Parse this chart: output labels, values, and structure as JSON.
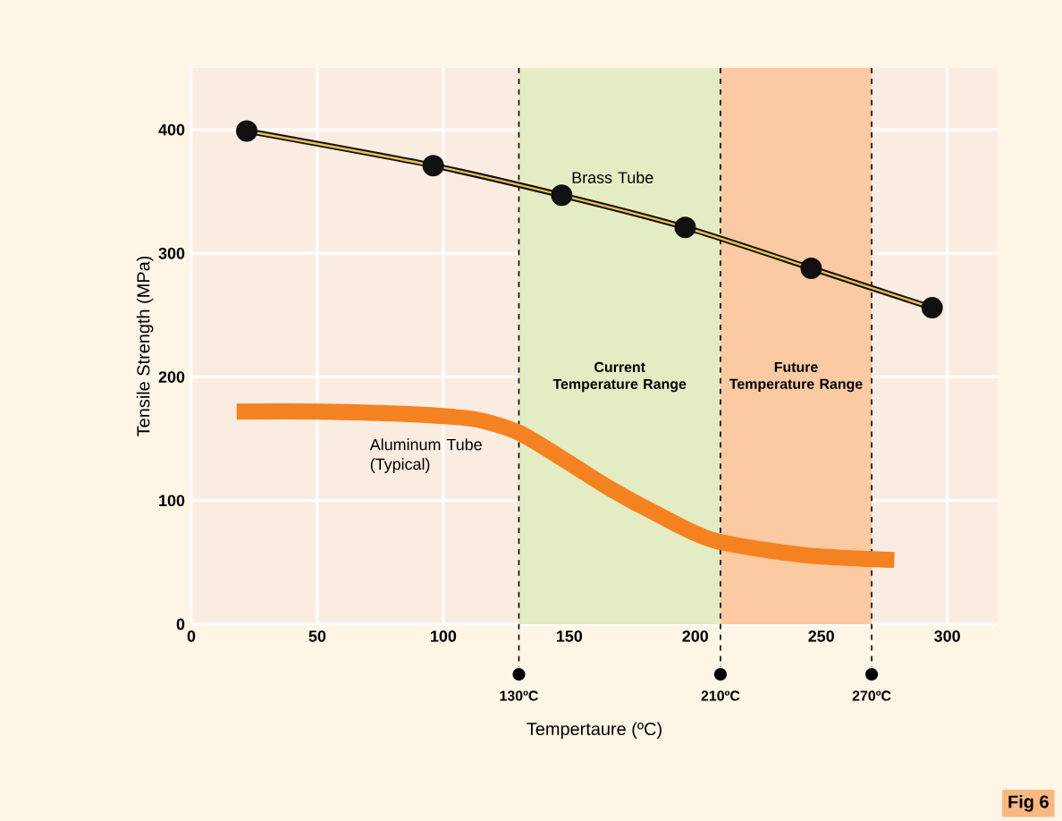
{
  "chart_data": {
    "type": "line",
    "xlabel": "Tempertaure (ºC)",
    "ylabel": "Tensile Strength (MPa)",
    "xlim": [
      0,
      320
    ],
    "ylim": [
      0,
      450
    ],
    "xticks": [
      0,
      50,
      100,
      150,
      200,
      250,
      300
    ],
    "yticks": [
      0,
      100,
      200,
      300,
      400
    ],
    "grid": true,
    "series": [
      {
        "name": "Brass Tube",
        "color": "#111111",
        "marker": "circle",
        "x": [
          22,
          96,
          147,
          196,
          246,
          294
        ],
        "values": [
          399,
          371,
          347,
          321,
          288,
          256
        ]
      },
      {
        "name": "Aluminum Tube (Typical)",
        "color": "#f58220",
        "marker": "none",
        "x": [
          18,
          50,
          86,
          112,
          130,
          148,
          166,
          184,
          207,
          243,
          279
        ],
        "values": [
          172,
          172,
          170,
          166,
          155,
          133,
          110,
          90,
          68,
          56,
          52
        ]
      }
    ],
    "bands": [
      {
        "axis": "x",
        "from": 130,
        "to": 210,
        "label": "Current Temperature Range",
        "color": "#e3ecc2"
      },
      {
        "axis": "x",
        "from": 210,
        "to": 270,
        "label": "Future Temperature Range",
        "color": "#fbcaa2"
      }
    ],
    "ref_lines": [
      {
        "axis": "x",
        "value": 130,
        "label": "130ºC",
        "line_style": "dashed"
      },
      {
        "axis": "x",
        "value": 210,
        "label": "210ºC",
        "line_style": "dashed"
      },
      {
        "axis": "x",
        "value": 270,
        "label": "270ºC",
        "line_style": "dashed"
      }
    ],
    "annotations": [
      "Fig 6"
    ]
  }
}
